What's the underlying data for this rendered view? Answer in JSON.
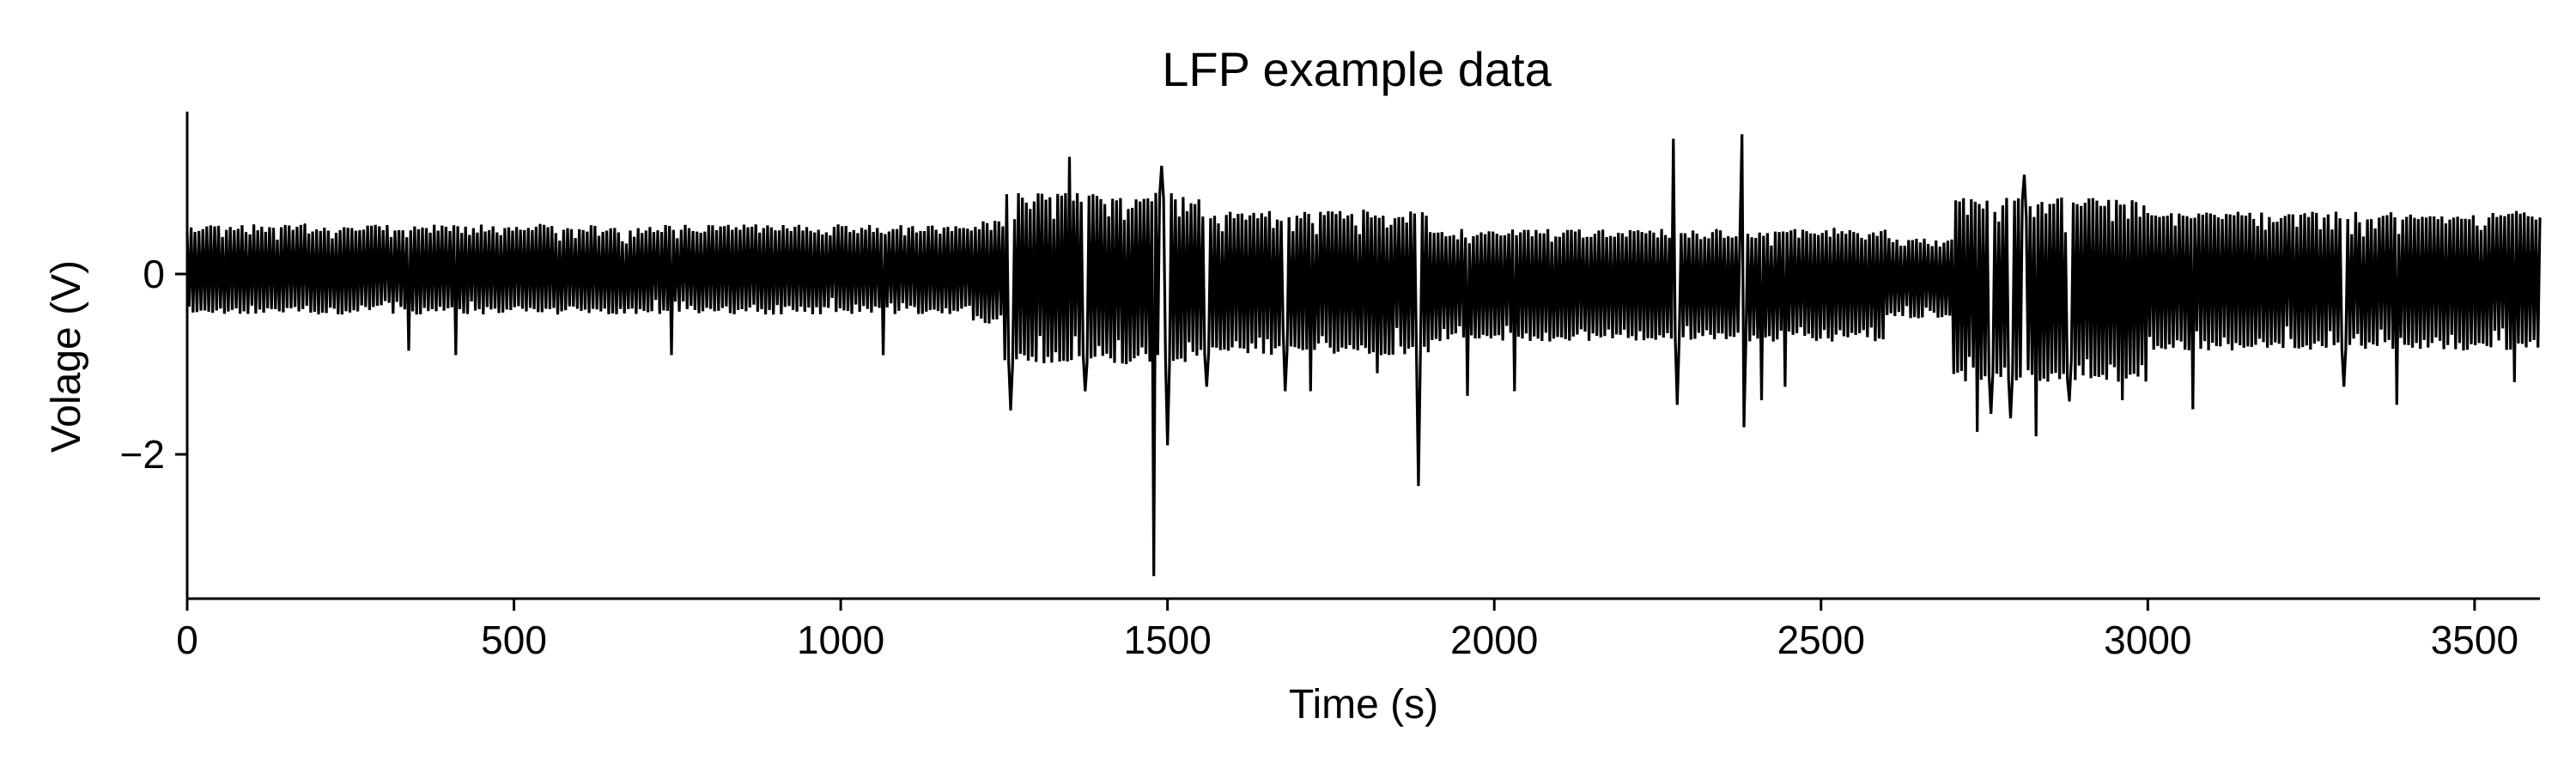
{
  "chart_data": {
    "type": "line",
    "title": "LFP example data",
    "xlabel": "Time (s)",
    "ylabel": "Volage (V)",
    "xlim": [
      0,
      3600
    ],
    "ylim": [
      -3.6,
      1.8
    ],
    "xticks": [
      0,
      500,
      1000,
      1500,
      2000,
      2500,
      3000,
      3500
    ],
    "yticks": [
      0,
      -2
    ],
    "xtick_labels": [
      "0",
      "500",
      "1000",
      "1500",
      "2000",
      "2500",
      "3000",
      "3500"
    ],
    "ytick_labels": [
      "0",
      "−2"
    ],
    "grid": false,
    "legend": "none",
    "line_color": "#000000",
    "series": [
      {
        "x_sampling": [
          0,
          3600,
          1201
        ],
        "envelope_segments": [
          {
            "x": [
              0,
              1200
            ],
            "high": 0.55,
            "low": -0.45
          },
          {
            "x": [
              1200,
              1250
            ],
            "high": 0.6,
            "low": -0.55
          },
          {
            "x": [
              1250,
              1550
            ],
            "high": 0.9,
            "low": -1.0
          },
          {
            "x": [
              1550,
              1900
            ],
            "high": 0.7,
            "low": -0.9
          },
          {
            "x": [
              1900,
              2600
            ],
            "high": 0.5,
            "low": -0.75
          },
          {
            "x": [
              2600,
              2700
            ],
            "high": 0.4,
            "low": -0.5
          },
          {
            "x": [
              2700,
              3000
            ],
            "high": 0.85,
            "low": -1.2
          },
          {
            "x": [
              3000,
              3600
            ],
            "high": 0.7,
            "low": -0.85
          }
        ],
        "spikes": [
          {
            "x": 340,
            "y": -0.85
          },
          {
            "x": 410,
            "y": -0.9
          },
          {
            "x": 740,
            "y": -0.9
          },
          {
            "x": 1065,
            "y": -0.9
          },
          {
            "x": 1260,
            "y": -1.5
          },
          {
            "x": 1350,
            "y": 1.3
          },
          {
            "x": 1375,
            "y": -1.3
          },
          {
            "x": 1478,
            "y": -3.35
          },
          {
            "x": 1490,
            "y": 1.2
          },
          {
            "x": 1500,
            "y": -1.9
          },
          {
            "x": 1560,
            "y": -1.25
          },
          {
            "x": 1680,
            "y": -1.3
          },
          {
            "x": 1720,
            "y": -1.3
          },
          {
            "x": 1820,
            "y": -1.1
          },
          {
            "x": 1885,
            "y": -2.35
          },
          {
            "x": 1960,
            "y": -1.35
          },
          {
            "x": 2030,
            "y": -1.3
          },
          {
            "x": 2275,
            "y": 1.5
          },
          {
            "x": 2280,
            "y": -1.45
          },
          {
            "x": 2380,
            "y": 1.55
          },
          {
            "x": 2382,
            "y": -1.7
          },
          {
            "x": 2410,
            "y": -1.4
          },
          {
            "x": 2445,
            "y": -1.25
          },
          {
            "x": 2740,
            "y": -1.75
          },
          {
            "x": 2760,
            "y": -1.55
          },
          {
            "x": 2790,
            "y": -1.6
          },
          {
            "x": 2810,
            "y": 1.1
          },
          {
            "x": 2830,
            "y": -1.8
          },
          {
            "x": 2880,
            "y": -1.4
          },
          {
            "x": 2960,
            "y": -1.4
          },
          {
            "x": 3070,
            "y": -1.5
          },
          {
            "x": 3300,
            "y": -1.25
          },
          {
            "x": 3380,
            "y": -1.45
          },
          {
            "x": 3560,
            "y": -1.2
          }
        ]
      }
    ]
  }
}
